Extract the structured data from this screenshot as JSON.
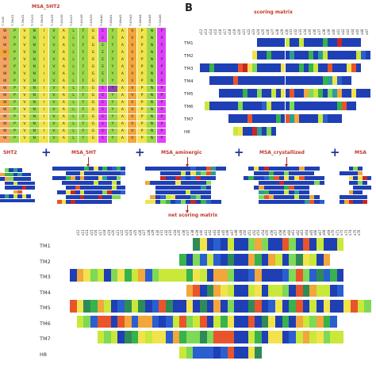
{
  "panel_a": {
    "title": "MSA_5HT2",
    "headers": [
      "7.3x30",
      "7.35x31",
      "7.36x32",
      "7.37x33",
      "7.38x34",
      "7.39x35",
      "7.40x36",
      "7.41x37",
      "7.42x38",
      "7.43x39",
      "7.44x40",
      "7.45x41",
      "7.46x42",
      "7.47x43",
      "7.48x44",
      "7.49x45",
      "7.50x46"
    ],
    "column_colors": [
      "#f4a460",
      "#9bd94a",
      "#f2e34c",
      "#9bd94a",
      "#f2e34c",
      "#9bd94a",
      "#f2e34c",
      "#9bd94a",
      "#9bd94a",
      "#f2e34c",
      "#e040fb",
      "#9bd94a",
      "#f2e34c",
      "#f2a63c",
      "#f2e34c",
      "#9bd94a",
      "#e040fb"
    ],
    "residues": [
      "W",
      "P",
      "V",
      "N",
      "I",
      "V",
      "A",
      "L",
      "F",
      "G",
      "E",
      "Y",
      "A",
      "V",
      "P",
      "N",
      "P"
    ],
    "row_count": 16
  },
  "panel_b": {
    "letter": "B",
    "title": "scoring matrix",
    "headers": [
      "x12",
      "x13",
      "x14",
      "x15",
      "x16",
      "x17",
      "x18",
      "x19",
      "x20",
      "x21",
      "x22",
      "x23",
      "x24",
      "x25",
      "x26",
      "x27",
      "x28",
      "x29",
      "x30",
      "x31",
      "x32",
      "x33",
      "x34",
      "x35",
      "x36",
      "x37",
      "x38",
      "x39",
      "x40",
      "x41",
      "x42",
      "x43",
      "x44",
      "x45",
      "x46",
      "x47"
    ],
    "rows": [
      "TM1",
      "TM2",
      "TM3",
      "TM4",
      "TM5",
      "TM6",
      "TM7",
      "H8"
    ]
  },
  "middle": {
    "labels": [
      "5HT2",
      "MSA_5HT",
      "MSA_aminergic",
      "MSA_crystallized",
      "MSA"
    ],
    "plus": "+",
    "result_label": "net scoring matrix"
  },
  "panel_c": {
    "headers": [
      "x12",
      "x13",
      "x14",
      "x15",
      "x16",
      "x17",
      "x18",
      "x19",
      "x20",
      "x21",
      "x22",
      "x23",
      "x24",
      "x25",
      "x26",
      "x27",
      "x28",
      "x29",
      "x30",
      "x31",
      "x32",
      "x33",
      "x34",
      "x35",
      "x36",
      "x37",
      "x38",
      "x39",
      "x40",
      "x41",
      "x42",
      "x43",
      "x44",
      "x45",
      "x46",
      "x47",
      "x48",
      "x49",
      "x50",
      "x51",
      "x52",
      "x53",
      "x54",
      "x55",
      "x56",
      "x57",
      "x58",
      "x59",
      "x60",
      "x61",
      "x62",
      "x63",
      "x64",
      "x65",
      "x66",
      "x67",
      "x68",
      "x69",
      "x70",
      "x71",
      "x72",
      "x73",
      "x74",
      "x75",
      "x76"
    ],
    "rows": [
      "TM1",
      "TM2",
      "TM3",
      "TM4",
      "TM5",
      "TM6",
      "TM7",
      "H8"
    ]
  },
  "colors": {
    "heat_high": "#1f3fb4",
    "heat_mid": "#2e8b57",
    "heat_warm": "#f2e34c",
    "heat_hot": "#e8552b",
    "title_red": "#c0392b"
  }
}
